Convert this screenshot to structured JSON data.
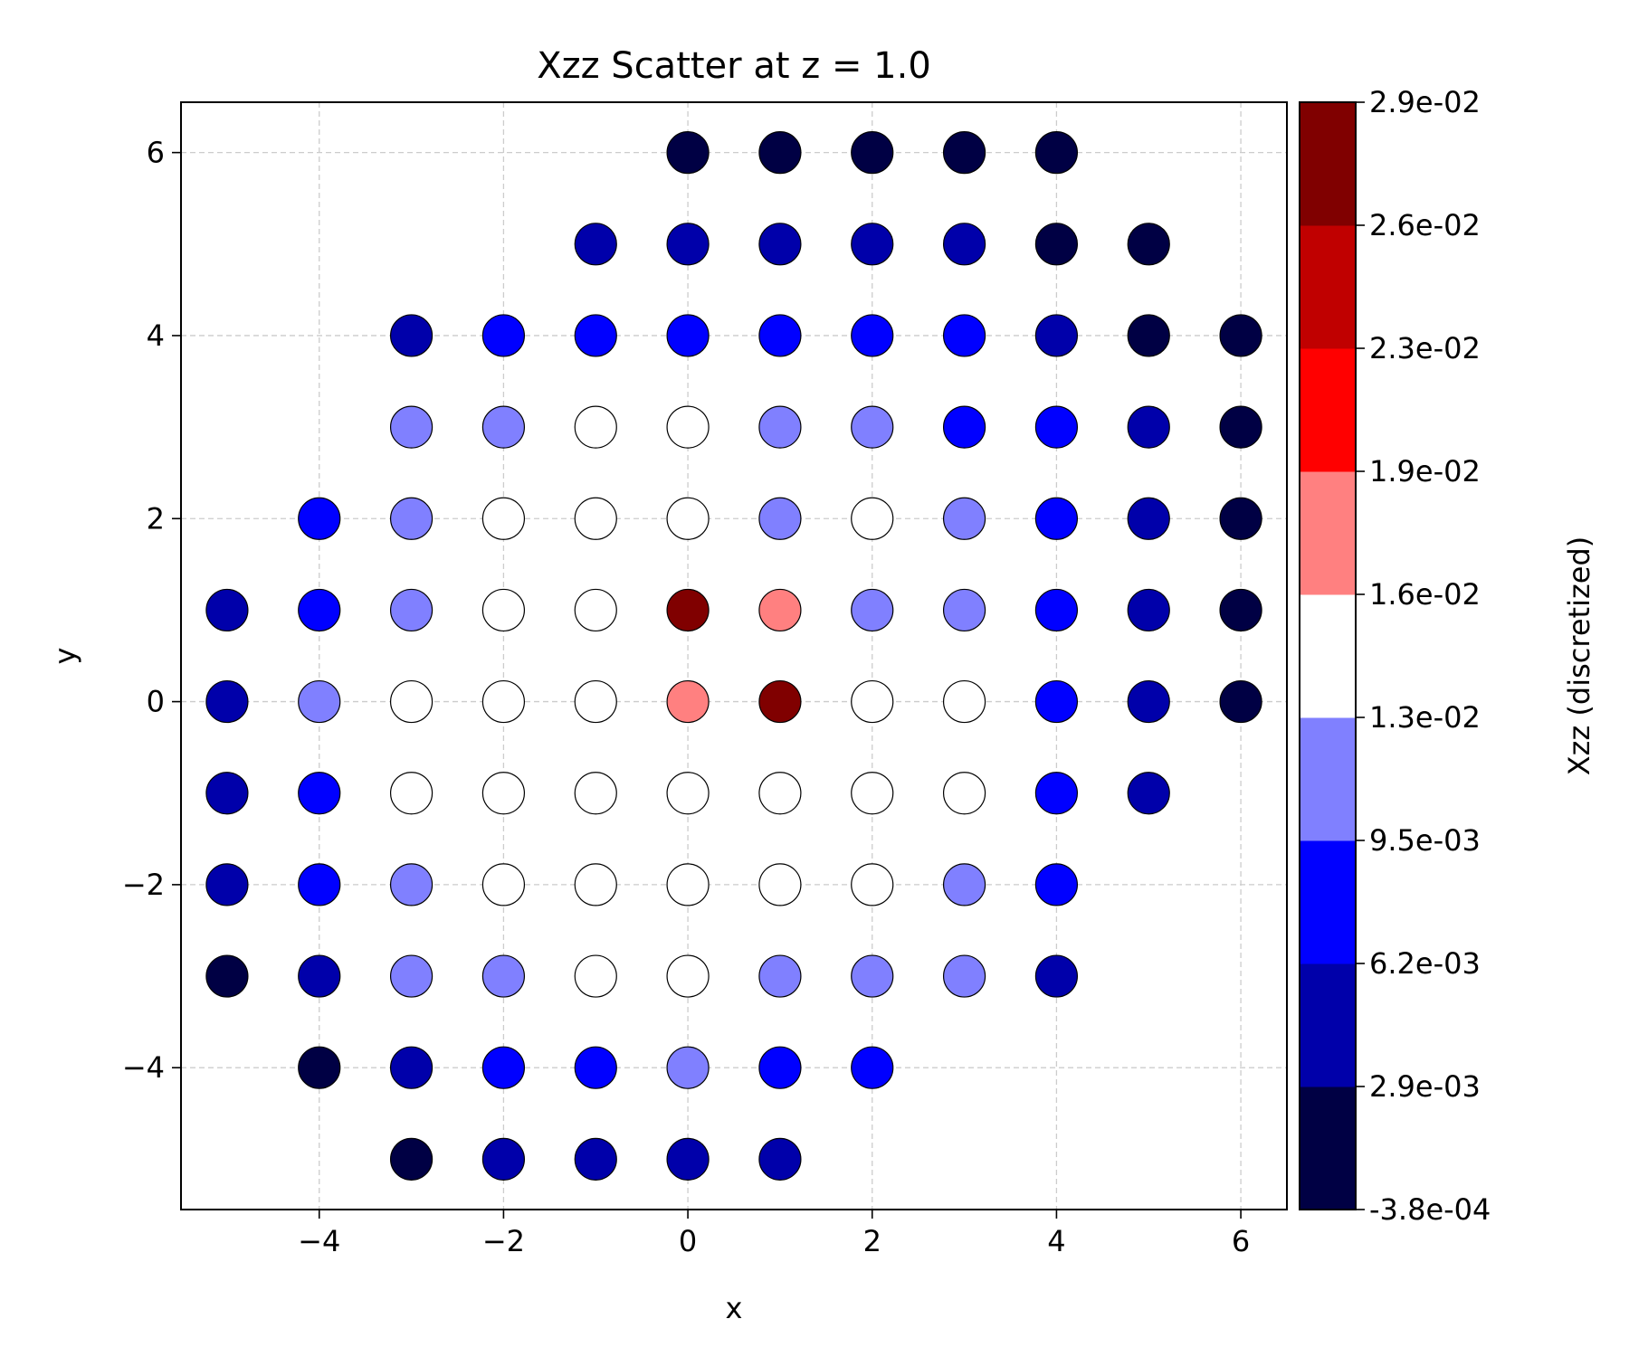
{
  "chart_data": {
    "type": "scatter",
    "title": "Xzz Scatter at z = 1.0",
    "xlabel": "x",
    "ylabel": "y",
    "xlim": [
      -5.5,
      6.5
    ],
    "ylim": [
      -5.55,
      6.55
    ],
    "xticks": [
      -4,
      -2,
      0,
      2,
      4,
      6
    ],
    "yticks": [
      -4,
      -2,
      0,
      2,
      4,
      6
    ],
    "xtick_labels": [
      "−4",
      "−2",
      "0",
      "2",
      "4",
      "6"
    ],
    "ytick_labels": [
      "−4",
      "−2",
      "0",
      "2",
      "4",
      "6"
    ],
    "grid": true,
    "colorbar": {
      "label": "Xzz (discretized)",
      "tick_labels": [
        "-3.8e-04",
        "2.9e-03",
        "6.2e-03",
        "9.5e-03",
        "1.3e-02",
        "1.6e-02",
        "1.9e-02",
        "2.3e-02",
        "2.6e-02",
        "2.9e-02"
      ],
      "colors": [
        "#000044",
        "#0000aa",
        "#0000ff",
        "#8080ff",
        "#ffffff",
        "#ff8080",
        "#ff0000",
        "#c00000",
        "#800000"
      ]
    },
    "points_note": "each row: y, then [x, color-bin index 0-8]",
    "rows": [
      {
        "y": 6,
        "pts": [
          [
            0,
            0
          ],
          [
            1,
            0
          ],
          [
            2,
            0
          ],
          [
            3,
            0
          ],
          [
            4,
            0
          ]
        ]
      },
      {
        "y": 5,
        "pts": [
          [
            -1,
            1
          ],
          [
            0,
            1
          ],
          [
            1,
            1
          ],
          [
            2,
            1
          ],
          [
            3,
            1
          ],
          [
            4,
            0
          ],
          [
            5,
            0
          ]
        ]
      },
      {
        "y": 4,
        "pts": [
          [
            -3,
            1
          ],
          [
            -2,
            2
          ],
          [
            -1,
            2
          ],
          [
            0,
            2
          ],
          [
            1,
            2
          ],
          [
            2,
            2
          ],
          [
            3,
            2
          ],
          [
            4,
            1
          ],
          [
            5,
            0
          ],
          [
            6,
            0
          ]
        ]
      },
      {
        "y": 3,
        "pts": [
          [
            -3,
            3
          ],
          [
            -2,
            3
          ],
          [
            -1,
            4
          ],
          [
            0,
            4
          ],
          [
            1,
            3
          ],
          [
            2,
            3
          ],
          [
            3,
            2
          ],
          [
            4,
            2
          ],
          [
            5,
            1
          ],
          [
            6,
            0
          ]
        ]
      },
      {
        "y": 2,
        "pts": [
          [
            -4,
            2
          ],
          [
            -3,
            3
          ],
          [
            -2,
            4
          ],
          [
            -1,
            4
          ],
          [
            0,
            4
          ],
          [
            1,
            3
          ],
          [
            2,
            4
          ],
          [
            3,
            3
          ],
          [
            4,
            2
          ],
          [
            5,
            1
          ],
          [
            6,
            0
          ]
        ]
      },
      {
        "y": 1,
        "pts": [
          [
            -5,
            1
          ],
          [
            -4,
            2
          ],
          [
            -3,
            3
          ],
          [
            -2,
            4
          ],
          [
            -1,
            4
          ],
          [
            0,
            8
          ],
          [
            1,
            5
          ],
          [
            2,
            3
          ],
          [
            3,
            3
          ],
          [
            4,
            2
          ],
          [
            5,
            1
          ],
          [
            6,
            0
          ]
        ]
      },
      {
        "y": 0,
        "pts": [
          [
            -5,
            1
          ],
          [
            -4,
            3
          ],
          [
            -3,
            4
          ],
          [
            -2,
            4
          ],
          [
            -1,
            4
          ],
          [
            0,
            5
          ],
          [
            1,
            8
          ],
          [
            2,
            4
          ],
          [
            3,
            4
          ],
          [
            4,
            2
          ],
          [
            5,
            1
          ],
          [
            6,
            0
          ]
        ]
      },
      {
        "y": -1,
        "pts": [
          [
            -5,
            1
          ],
          [
            -4,
            2
          ],
          [
            -3,
            4
          ],
          [
            -2,
            4
          ],
          [
            -1,
            4
          ],
          [
            0,
            4
          ],
          [
            1,
            4
          ],
          [
            2,
            4
          ],
          [
            3,
            4
          ],
          [
            4,
            2
          ],
          [
            5,
            1
          ]
        ]
      },
      {
        "y": -2,
        "pts": [
          [
            -5,
            1
          ],
          [
            -4,
            2
          ],
          [
            -3,
            3
          ],
          [
            -2,
            4
          ],
          [
            -1,
            4
          ],
          [
            0,
            4
          ],
          [
            1,
            4
          ],
          [
            2,
            4
          ],
          [
            3,
            3
          ],
          [
            4,
            2
          ]
        ]
      },
      {
        "y": -3,
        "pts": [
          [
            -5,
            0
          ],
          [
            -4,
            1
          ],
          [
            -3,
            3
          ],
          [
            -2,
            3
          ],
          [
            -1,
            4
          ],
          [
            0,
            4
          ],
          [
            1,
            3
          ],
          [
            2,
            3
          ],
          [
            3,
            3
          ],
          [
            4,
            1
          ]
        ]
      },
      {
        "y": -4,
        "pts": [
          [
            -4,
            0
          ],
          [
            -3,
            1
          ],
          [
            -2,
            2
          ],
          [
            -1,
            2
          ],
          [
            0,
            3
          ],
          [
            1,
            2
          ],
          [
            2,
            2
          ]
        ]
      },
      {
        "y": -5,
        "pts": [
          [
            -3,
            0
          ],
          [
            -2,
            1
          ],
          [
            -1,
            1
          ],
          [
            0,
            1
          ],
          [
            1,
            1
          ]
        ]
      }
    ]
  }
}
